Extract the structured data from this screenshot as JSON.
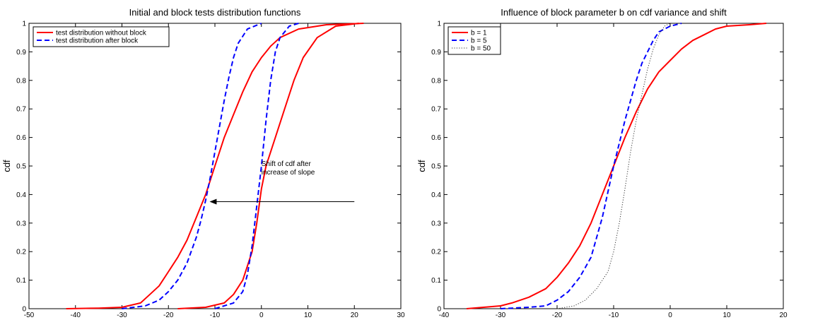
{
  "chart_data": [
    {
      "type": "line",
      "title": "Initial and block tests distribution functions",
      "xlabel": "",
      "ylabel": "cdf",
      "xlim": [
        -50,
        30
      ],
      "ylim": [
        0,
        1
      ],
      "xticks": [
        -50,
        -40,
        -30,
        -20,
        -10,
        0,
        10,
        20,
        30
      ],
      "yticks": [
        0,
        0.1,
        0.2,
        0.3,
        0.4,
        0.5,
        0.6,
        0.7,
        0.8,
        0.9,
        1
      ],
      "legend_position": "top-left",
      "legend": [
        "test distribution without block",
        "test distribution after block"
      ],
      "series": [
        {
          "name": "test distribution without block",
          "color": "#ff0000",
          "style": "solid",
          "points": [
            [
              -42,
              0
            ],
            [
              -35,
              0.002
            ],
            [
              -30,
              0.005
            ],
            [
              -26,
              0.02
            ],
            [
              -24,
              0.05
            ],
            [
              -22,
              0.08
            ],
            [
              -20,
              0.13
            ],
            [
              -18,
              0.18
            ],
            [
              -16,
              0.24
            ],
            [
              -14,
              0.32
            ],
            [
              -12,
              0.4
            ],
            [
              -10,
              0.5
            ],
            [
              -8,
              0.6
            ],
            [
              -6,
              0.68
            ],
            [
              -4,
              0.76
            ],
            [
              -2,
              0.83
            ],
            [
              0,
              0.88
            ],
            [
              2,
              0.92
            ],
            [
              4,
              0.95
            ],
            [
              8,
              0.98
            ],
            [
              14,
              0.995
            ],
            [
              22,
              1
            ]
          ]
        },
        {
          "name": "test distribution after block",
          "color": "#0000ff",
          "style": "dashed",
          "points": [
            [
              -30,
              0
            ],
            [
              -25,
              0.01
            ],
            [
              -22,
              0.03
            ],
            [
              -20,
              0.06
            ],
            [
              -18,
              0.1
            ],
            [
              -16,
              0.16
            ],
            [
              -14,
              0.25
            ],
            [
              -13,
              0.31
            ],
            [
              -12,
              0.38
            ],
            [
              -11,
              0.46
            ],
            [
              -10,
              0.55
            ],
            [
              -9,
              0.64
            ],
            [
              -8,
              0.73
            ],
            [
              -7,
              0.81
            ],
            [
              -6,
              0.88
            ],
            [
              -5,
              0.93
            ],
            [
              -3,
              0.98
            ],
            [
              0,
              1
            ]
          ]
        },
        {
          "name": "test distribution without block",
          "color": "#ff0000",
          "style": "solid",
          "points": [
            [
              -18,
              0
            ],
            [
              -12,
              0.005
            ],
            [
              -8,
              0.02
            ],
            [
              -6,
              0.05
            ],
            [
              -4,
              0.1
            ],
            [
              -2,
              0.2
            ],
            [
              -1,
              0.3
            ],
            [
              0,
              0.42
            ],
            [
              1,
              0.5
            ],
            [
              3,
              0.6
            ],
            [
              5,
              0.7
            ],
            [
              7,
              0.8
            ],
            [
              9,
              0.88
            ],
            [
              12,
              0.95
            ],
            [
              16,
              0.99
            ],
            [
              21,
              1
            ]
          ]
        },
        {
          "name": "test distribution after block",
          "color": "#0000ff",
          "style": "dashed",
          "points": [
            [
              -10,
              0
            ],
            [
              -6,
              0.02
            ],
            [
              -4,
              0.06
            ],
            [
              -3,
              0.12
            ],
            [
              -2,
              0.22
            ],
            [
              -1,
              0.36
            ],
            [
              0,
              0.5
            ],
            [
              1,
              0.66
            ],
            [
              2,
              0.8
            ],
            [
              3,
              0.9
            ],
            [
              4,
              0.95
            ],
            [
              6,
              0.99
            ],
            [
              8,
              1
            ]
          ]
        }
      ],
      "annotation": {
        "lines": [
          "Shift of cdf after",
          "increase of slope"
        ],
        "text_at": [
          0,
          0.5
        ],
        "arrow_from": [
          20,
          0.375
        ],
        "arrow_to": [
          -11,
          0.375
        ]
      }
    },
    {
      "type": "line",
      "title": "Influence of block parameter b on cdf variance and shift",
      "xlabel": "",
      "ylabel": "cdf",
      "xlim": [
        -40,
        20
      ],
      "ylim": [
        0,
        1
      ],
      "xticks": [
        -40,
        -30,
        -20,
        -10,
        0,
        10,
        20
      ],
      "yticks": [
        0,
        0.1,
        0.2,
        0.3,
        0.4,
        0.5,
        0.6,
        0.7,
        0.8,
        0.9,
        1
      ],
      "legend_position": "top-left",
      "legend": [
        "b = 1",
        "b = 5",
        "b = 50"
      ],
      "series": [
        {
          "name": "b = 1",
          "color": "#ff0000",
          "style": "solid",
          "points": [
            [
              -36,
              0
            ],
            [
              -33,
              0.005
            ],
            [
              -30,
              0.01
            ],
            [
              -28,
              0.02
            ],
            [
              -25,
              0.04
            ],
            [
              -22,
              0.07
            ],
            [
              -20,
              0.11
            ],
            [
              -18,
              0.16
            ],
            [
              -16,
              0.22
            ],
            [
              -14,
              0.3
            ],
            [
              -12,
              0.4
            ],
            [
              -10,
              0.5
            ],
            [
              -8,
              0.6
            ],
            [
              -6,
              0.69
            ],
            [
              -4,
              0.77
            ],
            [
              -2,
              0.83
            ],
            [
              0,
              0.87
            ],
            [
              2,
              0.91
            ],
            [
              4,
              0.94
            ],
            [
              6,
              0.96
            ],
            [
              8,
              0.98
            ],
            [
              10,
              0.99
            ],
            [
              14,
              0.995
            ],
            [
              17,
              1
            ]
          ]
        },
        {
          "name": "b = 5",
          "color": "#0000ff",
          "style": "dashed",
          "points": [
            [
              -30,
              0
            ],
            [
              -25,
              0.005
            ],
            [
              -22,
              0.01
            ],
            [
              -20,
              0.03
            ],
            [
              -18,
              0.06
            ],
            [
              -16,
              0.11
            ],
            [
              -14,
              0.18
            ],
            [
              -13,
              0.25
            ],
            [
              -12,
              0.32
            ],
            [
              -11,
              0.41
            ],
            [
              -10,
              0.5
            ],
            [
              -9,
              0.58
            ],
            [
              -8,
              0.66
            ],
            [
              -7,
              0.73
            ],
            [
              -6,
              0.8
            ],
            [
              -5,
              0.86
            ],
            [
              -4,
              0.9
            ],
            [
              -3,
              0.94
            ],
            [
              -2,
              0.97
            ],
            [
              0,
              0.99
            ],
            [
              2,
              1
            ]
          ]
        },
        {
          "name": "b = 50",
          "color": "#333333",
          "style": "dotted",
          "points": [
            [
              -20,
              0
            ],
            [
              -17,
              0.01
            ],
            [
              -15,
              0.03
            ],
            [
              -13,
              0.07
            ],
            [
              -11,
              0.13
            ],
            [
              -10,
              0.2
            ],
            [
              -9,
              0.3
            ],
            [
              -8,
              0.42
            ],
            [
              -7,
              0.55
            ],
            [
              -6,
              0.66
            ],
            [
              -5,
              0.75
            ],
            [
              -4,
              0.84
            ],
            [
              -3,
              0.91
            ],
            [
              -2,
              0.96
            ],
            [
              -1,
              0.99
            ],
            [
              0,
              1
            ]
          ]
        }
      ]
    }
  ]
}
